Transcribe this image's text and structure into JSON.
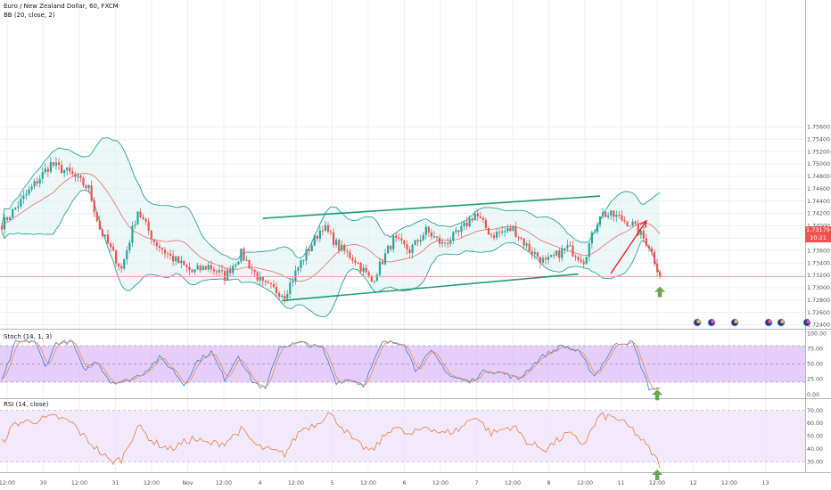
{
  "header": {
    "symbol_title": "Euro / New Zealand Dollar, 60, FXCM",
    "bb_label": "BB (20, close, 2)",
    "stoch_label": "Stoch (14, 1, 3)",
    "rsi_label": "RSI (14, close)"
  },
  "price_tag": {
    "price": "1.73179",
    "countdown": "10:21"
  },
  "colors": {
    "up_candle": "#26a69a",
    "down_candle": "#ef5350",
    "bb_line": "#26a69a",
    "bb_fill": "#e0f2f1",
    "basis": "#ef6c6c",
    "channel": "#1b9e6e",
    "projection_arrow": "#e8202a",
    "signal_arrow": "#6aa84f",
    "stoch_band": "#cfa8f5",
    "rsi_band": "#efe3fb",
    "rsi_line": "#f07f3c",
    "grid": "#eef0f3"
  },
  "chart_data": [
    {
      "type": "candlestick",
      "title": "Euro / New Zealand Dollar, 60, FXCM",
      "indicator": "BB (20, close, 2)",
      "ylim": [
        1.7235,
        1.7765
      ],
      "y_ticks": [
        1.724,
        1.726,
        1.728,
        1.73,
        1.732,
        1.734,
        1.736,
        1.738,
        1.74,
        1.742,
        1.744,
        1.746,
        1.748,
        1.75,
        1.752,
        1.754,
        1.756
      ],
      "y_tick_labels": [
        "1.72400",
        "1.72600",
        "1.72800",
        "1.73000",
        "1.73200",
        "1.73400",
        "1.73600",
        "1.73800",
        "1.74000",
        "1.74200",
        "1.74400",
        "1.74600",
        "1.74800",
        "1.75000",
        "1.75200",
        "1.75400",
        "1.75600"
      ],
      "x_tick_labels": [
        "12:00",
        "30",
        "12:00",
        "31",
        "12:00",
        "Nov",
        "12:00",
        "4",
        "12:00",
        "5",
        "12:00",
        "6",
        "12:00",
        "7",
        "12:00",
        "8",
        "12:00",
        "11",
        "12:00",
        "12",
        "12:00",
        "13"
      ],
      "current_price": 1.73179,
      "anchors": [
        [
          0,
          1.7402
        ],
        [
          8,
          1.7445
        ],
        [
          18,
          1.75
        ],
        [
          25,
          1.7485
        ],
        [
          32,
          1.746
        ],
        [
          36,
          1.7395
        ],
        [
          44,
          1.733
        ],
        [
          50,
          1.7425
        ],
        [
          56,
          1.7375
        ],
        [
          62,
          1.735
        ],
        [
          70,
          1.7325
        ],
        [
          76,
          1.7335
        ],
        [
          82,
          1.7318
        ],
        [
          88,
          1.7355
        ],
        [
          96,
          1.7305
        ],
        [
          104,
          1.7289
        ],
        [
          110,
          1.7341
        ],
        [
          118,
          1.74
        ],
        [
          124,
          1.7365
        ],
        [
          130,
          1.7345
        ],
        [
          136,
          1.731
        ],
        [
          144,
          1.7378
        ],
        [
          150,
          1.736
        ],
        [
          156,
          1.7392
        ],
        [
          162,
          1.737
        ],
        [
          168,
          1.7388
        ],
        [
          174,
          1.742
        ],
        [
          180,
          1.7385
        ],
        [
          188,
          1.7395
        ],
        [
          194,
          1.7362
        ],
        [
          200,
          1.734
        ],
        [
          208,
          1.7365
        ],
        [
          214,
          1.7345
        ],
        [
          220,
          1.742
        ],
        [
          226,
          1.7415
        ],
        [
          232,
          1.7402
        ],
        [
          238,
          1.7368
        ],
        [
          242,
          1.732
        ]
      ],
      "channel": {
        "upper": [
          [
            96,
            1.7412
          ],
          [
            220,
            1.7448
          ]
        ],
        "lower": [
          [
            103,
            1.7279
          ],
          [
            212,
            1.7322
          ]
        ]
      },
      "projection_arrow": [
        [
          224,
          1.7323
        ],
        [
          237,
          1.7408
        ]
      ]
    },
    {
      "type": "line",
      "title": "Stoch (14, 1, 3)",
      "ylim": [
        -5,
        105
      ],
      "y_ticks": [
        0,
        25,
        50,
        75,
        100
      ],
      "y_tick_labels": [
        "0.00",
        "25.00",
        "50.00",
        "75.00",
        "100.00"
      ],
      "band": [
        20,
        80
      ],
      "anchors": [
        [
          0,
          20
        ],
        [
          5,
          85
        ],
        [
          12,
          88
        ],
        [
          16,
          45
        ],
        [
          20,
          85
        ],
        [
          26,
          86
        ],
        [
          30,
          40
        ],
        [
          35,
          55
        ],
        [
          40,
          20
        ],
        [
          46,
          22
        ],
        [
          52,
          35
        ],
        [
          58,
          60
        ],
        [
          63,
          40
        ],
        [
          67,
          15
        ],
        [
          72,
          55
        ],
        [
          77,
          70
        ],
        [
          82,
          25
        ],
        [
          87,
          65
        ],
        [
          92,
          22
        ],
        [
          97,
          8
        ],
        [
          102,
          78
        ],
        [
          110,
          85
        ],
        [
          118,
          75
        ],
        [
          123,
          20
        ],
        [
          128,
          25
        ],
        [
          133,
          15
        ],
        [
          140,
          85
        ],
        [
          148,
          85
        ],
        [
          152,
          40
        ],
        [
          158,
          70
        ],
        [
          165,
          30
        ],
        [
          172,
          20
        ],
        [
          178,
          40
        ],
        [
          184,
          35
        ],
        [
          190,
          25
        ],
        [
          198,
          60
        ],
        [
          206,
          80
        ],
        [
          212,
          70
        ],
        [
          218,
          30
        ],
        [
          226,
          85
        ],
        [
          232,
          85
        ],
        [
          238,
          10
        ],
        [
          242,
          8
        ]
      ]
    },
    {
      "type": "line",
      "title": "RSI (14, close)",
      "ylim": [
        22,
        78
      ],
      "y_ticks": [
        30,
        40,
        50,
        60,
        70
      ],
      "y_tick_labels": [
        "30.00",
        "40.00",
        "50.00",
        "60.00",
        "70.00"
      ],
      "band": [
        30,
        70
      ],
      "anchors": [
        [
          0,
          45
        ],
        [
          5,
          60
        ],
        [
          12,
          62
        ],
        [
          20,
          65
        ],
        [
          26,
          60
        ],
        [
          30,
          50
        ],
        [
          35,
          40
        ],
        [
          40,
          30
        ],
        [
          44,
          32
        ],
        [
          50,
          58
        ],
        [
          56,
          45
        ],
        [
          62,
          40
        ],
        [
          70,
          48
        ],
        [
          76,
          44
        ],
        [
          82,
          45
        ],
        [
          88,
          55
        ],
        [
          94,
          42
        ],
        [
          100,
          38
        ],
        [
          104,
          36
        ],
        [
          110,
          55
        ],
        [
          116,
          60
        ],
        [
          120,
          68
        ],
        [
          124,
          60
        ],
        [
          130,
          45
        ],
        [
          136,
          38
        ],
        [
          144,
          58
        ],
        [
          150,
          50
        ],
        [
          156,
          58
        ],
        [
          162,
          52
        ],
        [
          168,
          55
        ],
        [
          174,
          66
        ],
        [
          180,
          52
        ],
        [
          188,
          58
        ],
        [
          194,
          44
        ],
        [
          200,
          40
        ],
        [
          208,
          52
        ],
        [
          214,
          44
        ],
        [
          220,
          66
        ],
        [
          226,
          64
        ],
        [
          232,
          55
        ],
        [
          238,
          40
        ],
        [
          242,
          28
        ]
      ]
    }
  ]
}
